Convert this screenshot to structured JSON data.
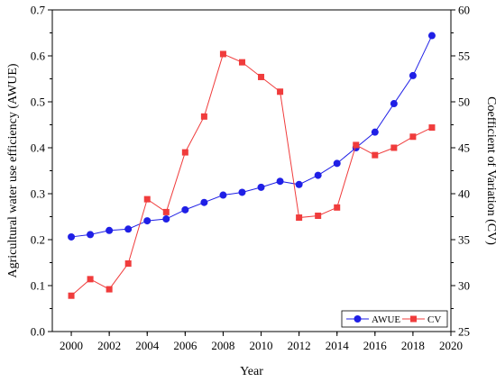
{
  "chart_data": {
    "type": "line",
    "xlabel": "Year",
    "ylabel_left": "Agricultural water use efficiency (AWUE)",
    "ylabel_right": "Coefficient of Variation (CV)",
    "xlim": [
      1999,
      2020
    ],
    "ylim_left": [
      0.0,
      0.7
    ],
    "ylim_right": [
      25,
      60
    ],
    "x_ticks": [
      2000,
      2002,
      2004,
      2006,
      2008,
      2010,
      2012,
      2014,
      2016,
      2018,
      2020
    ],
    "y_ticks_left": [
      0.0,
      0.1,
      0.2,
      0.3,
      0.4,
      0.5,
      0.6,
      0.7
    ],
    "y_ticks_right": [
      25,
      30,
      35,
      40,
      45,
      50,
      55,
      60
    ],
    "grid": false,
    "legend_position": "bottom-right",
    "x": [
      2000,
      2001,
      2002,
      2003,
      2004,
      2005,
      2006,
      2007,
      2008,
      2009,
      2010,
      2011,
      2012,
      2013,
      2014,
      2015,
      2016,
      2017,
      2018,
      2019
    ],
    "series": [
      {
        "name": "AWUE",
        "axis": "left",
        "marker": "circle",
        "color": "#1f1fe6",
        "values": [
          0.206,
          0.211,
          0.22,
          0.223,
          0.241,
          0.245,
          0.265,
          0.281,
          0.297,
          0.303,
          0.314,
          0.327,
          0.32,
          0.34,
          0.366,
          0.4,
          0.434,
          0.496,
          0.557,
          0.644
        ]
      },
      {
        "name": "CV",
        "axis": "right",
        "marker": "square",
        "color": "#f03c3c",
        "values": [
          28.9,
          30.7,
          29.6,
          32.4,
          39.4,
          38.0,
          44.5,
          48.4,
          55.2,
          54.3,
          52.7,
          51.1,
          37.4,
          37.6,
          38.5,
          45.3,
          44.2,
          45.0,
          46.2,
          47.2
        ]
      }
    ]
  }
}
